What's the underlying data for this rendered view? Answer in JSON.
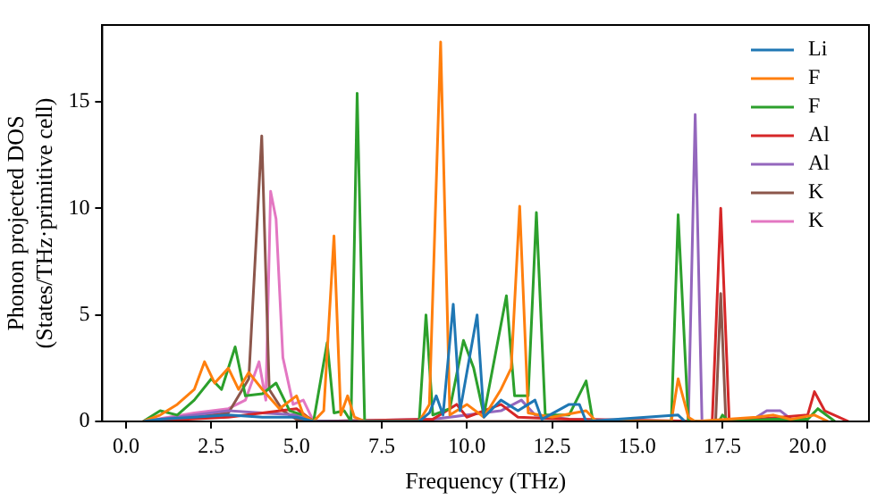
{
  "chart_data": {
    "type": "line",
    "xlabel": "Frequency (THz)",
    "ylabel": "Phonon projected DOS\n(States/THz·primitive cell)",
    "xlim": [
      -0.7,
      21.8
    ],
    "ylim": [
      0,
      18.6
    ],
    "xticks": [
      {
        "value": 0,
        "label": "0.0"
      },
      {
        "value": 2.5,
        "label": "2.5"
      },
      {
        "value": 5,
        "label": "5.0"
      },
      {
        "value": 7.5,
        "label": "7.5"
      },
      {
        "value": 10,
        "label": "10.0"
      },
      {
        "value": 12.5,
        "label": "12.5"
      },
      {
        "value": 15,
        "label": "15.0"
      },
      {
        "value": 17.5,
        "label": "17.5"
      },
      {
        "value": 20,
        "label": "20.0"
      }
    ],
    "yticks": [
      0,
      5,
      10,
      15
    ],
    "grid": false,
    "legend": "top right",
    "marker": "none",
    "line_style": "solid",
    "series": [
      {
        "name": "Li",
        "color": "#1f77b4",
        "x": [
          0.5,
          1,
          2,
          3,
          4,
          5,
          5.5,
          8.6,
          8.9,
          9.1,
          9.3,
          9.6,
          9.8,
          10.3,
          10.5,
          11,
          11.5,
          12,
          12.2,
          13,
          13.3,
          13.5,
          16.2,
          16.4
        ],
        "values": [
          0,
          0.1,
          0.2,
          0.3,
          0.2,
          0.2,
          0,
          0,
          0.4,
          1.2,
          0.3,
          5.5,
          0.5,
          5.0,
          0.2,
          1,
          0.5,
          1,
          0.1,
          0.8,
          0.8,
          0,
          0.3,
          0
        ]
      },
      {
        "name": "F",
        "color": "#ff7f0e",
        "x": [
          0.5,
          1,
          1.5,
          2,
          2.3,
          2.6,
          3,
          3.3,
          3.6,
          4,
          4.5,
          5,
          5.2,
          5.5,
          5.8,
          6.1,
          6.3,
          6.5,
          6.7,
          7,
          8.6,
          8.9,
          9.23,
          9.5,
          10,
          10.5,
          11,
          11.3,
          11.55,
          11.8,
          12.5,
          13.5,
          13.8,
          16,
          16.2,
          16.5,
          16.7,
          18.5,
          19,
          19.5,
          20.2,
          20.6
        ],
        "values": [
          0,
          0.3,
          0.8,
          1.5,
          2.8,
          1.8,
          2.5,
          1.5,
          2.3,
          1.5,
          0.6,
          1.2,
          0.3,
          0,
          0.5,
          8.7,
          0.3,
          1.2,
          0.2,
          0,
          0,
          0.8,
          17.8,
          0.3,
          0.8,
          0.2,
          1.5,
          2.5,
          10.1,
          0.4,
          0.2,
          0.5,
          0,
          0,
          2.0,
          0.2,
          0,
          0.2,
          0.3,
          0.1,
          0.3,
          0
        ]
      },
      {
        "name": "F",
        "color": "#2ca02c",
        "x": [
          0.5,
          1,
          1.5,
          2,
          2.5,
          2.8,
          3.2,
          3.5,
          4,
          4.4,
          4.8,
          5.2,
          5.5,
          5.9,
          6.1,
          6.4,
          6.6,
          6.78,
          7,
          8.6,
          8.8,
          9,
          9.5,
          9.9,
          10.2,
          10.5,
          11.16,
          11.4,
          11.8,
          12.04,
          12.3,
          13,
          13.5,
          13.7,
          16,
          16.2,
          16.5,
          17.4,
          17.5,
          17.7,
          19,
          20,
          20.3,
          20.8
        ],
        "values": [
          0,
          0.5,
          0.3,
          1,
          2.0,
          1.5,
          3.5,
          1.2,
          1.3,
          1.8,
          0.5,
          0.3,
          0,
          3.7,
          0.4,
          0.5,
          0,
          15.4,
          0,
          0,
          5.0,
          0.3,
          0.6,
          3.8,
          2.5,
          0.3,
          5.9,
          1.2,
          1.2,
          9.8,
          0.3,
          0.3,
          1.9,
          0,
          0,
          9.7,
          0,
          0,
          0.3,
          0,
          0.1,
          0.1,
          0.6,
          0
        ]
      },
      {
        "name": "Al",
        "color": "#d62728",
        "x": [
          0.5,
          3,
          5,
          5.5,
          9,
          9.7,
          10,
          11,
          11.5,
          13,
          17.2,
          17.45,
          17.7,
          20,
          20.2,
          20.5,
          21.2
        ],
        "values": [
          0,
          0.2,
          0.6,
          0,
          0.1,
          0.8,
          0.2,
          0.8,
          0.2,
          0.1,
          0,
          10.0,
          0,
          0.3,
          1.4,
          0.5,
          0
        ]
      },
      {
        "name": "Al",
        "color": "#9467bd",
        "x": [
          0.5,
          2,
          3,
          4,
          5,
          5.5,
          9,
          10,
          11,
          11.6,
          12,
          13,
          16.5,
          16.7,
          16.9,
          18.3,
          18.8,
          19.2,
          19.6
        ],
        "values": [
          0,
          0.3,
          0.5,
          0.4,
          0.3,
          0,
          0.1,
          0.3,
          0.5,
          1.0,
          0.3,
          0.1,
          0,
          14.4,
          0,
          0,
          0.5,
          0.5,
          0
        ]
      },
      {
        "name": "K",
        "color": "#8c564b",
        "x": [
          0.5,
          2,
          3,
          3.6,
          3.98,
          4.2,
          4.6,
          5,
          5.5,
          17.3,
          17.45,
          17.6
        ],
        "values": [
          0,
          0.2,
          0.4,
          2.0,
          13.4,
          1.5,
          0.5,
          0.1,
          0,
          0,
          6.0,
          0
        ]
      },
      {
        "name": "K",
        "color": "#e377c2",
        "x": [
          0.5,
          2,
          3,
          3.5,
          3.9,
          4.1,
          4.24,
          4.4,
          4.6,
          4.9,
          5.2,
          5.5
        ],
        "values": [
          0,
          0.4,
          0.6,
          1,
          2.8,
          1.0,
          10.8,
          9.5,
          3.0,
          0.8,
          1.0,
          0
        ]
      }
    ]
  }
}
